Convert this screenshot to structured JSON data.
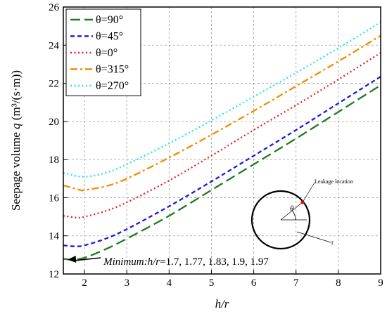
{
  "chart_data": {
    "type": "line",
    "title": "",
    "xlabel": "h/r",
    "ylabel_prefix": "Seepage volume ",
    "ylabel_var": "q",
    "ylabel_units": " (m³/(s·m))",
    "xlim": [
      1.5,
      9
    ],
    "ylim": [
      12,
      26
    ],
    "xticks": [
      2,
      3,
      4,
      5,
      6,
      7,
      8,
      9
    ],
    "yticks": [
      12,
      14,
      16,
      18,
      20,
      22,
      24,
      26
    ],
    "grid": true,
    "legend_position": "top-left",
    "series": [
      {
        "name": "θ=90°",
        "color": "#1f7a1f",
        "dash": "dashed-long",
        "x": [
          1.5,
          1.7,
          2.0,
          2.5,
          3.0,
          4.0,
          5.0,
          6.0,
          7.0,
          8.0,
          9.0
        ],
        "y": [
          12.8,
          12.75,
          12.85,
          13.3,
          13.85,
          15.05,
          16.4,
          17.75,
          19.1,
          20.5,
          21.9
        ]
      },
      {
        "name": "θ=45°",
        "color": "#1a1adb",
        "dash": "dashed-short",
        "x": [
          1.5,
          1.77,
          2.0,
          2.5,
          3.0,
          4.0,
          5.0,
          6.0,
          7.0,
          8.0,
          9.0
        ],
        "y": [
          13.5,
          13.45,
          13.5,
          13.85,
          14.35,
          15.55,
          16.85,
          18.2,
          19.55,
          20.95,
          22.35
        ]
      },
      {
        "name": "θ=0°",
        "color": "#ee1c1c",
        "dash": "dotted",
        "x": [
          1.5,
          1.83,
          2.0,
          2.5,
          3.0,
          4.0,
          5.0,
          6.0,
          7.0,
          8.0,
          9.0
        ],
        "y": [
          15.05,
          14.95,
          15.0,
          15.3,
          15.75,
          16.9,
          18.2,
          19.55,
          20.85,
          22.2,
          23.6
        ]
      },
      {
        "name": "θ=315°",
        "color": "#f28c00",
        "dash": "dash-dot",
        "x": [
          1.5,
          1.9,
          2.0,
          2.5,
          3.0,
          4.0,
          5.0,
          6.0,
          7.0,
          8.0,
          9.0
        ],
        "y": [
          16.65,
          16.4,
          16.4,
          16.6,
          17.0,
          18.1,
          19.3,
          20.55,
          21.85,
          23.15,
          24.5
        ]
      },
      {
        "name": "θ=270°",
        "color": "#22e5f0",
        "dash": "dotted",
        "x": [
          1.5,
          1.97,
          2.5,
          3.0,
          4.0,
          5.0,
          6.0,
          7.0,
          8.0,
          9.0
        ],
        "y": [
          17.3,
          17.1,
          17.3,
          17.75,
          18.85,
          20.05,
          21.3,
          22.55,
          23.85,
          25.2
        ]
      }
    ],
    "annotation": {
      "label": "Minimum:",
      "var": "h/r",
      "text": "=1.7, 1.77, 1.83, 1.9, 1.97",
      "arrow_to": {
        "x": 1.6,
        "y": 12.75
      },
      "label_at": {
        "x": 2.45,
        "y": 12.7
      }
    },
    "inset": {
      "leakage_label": "Leakage location",
      "theta_label": "θ",
      "r_label": "r"
    }
  }
}
